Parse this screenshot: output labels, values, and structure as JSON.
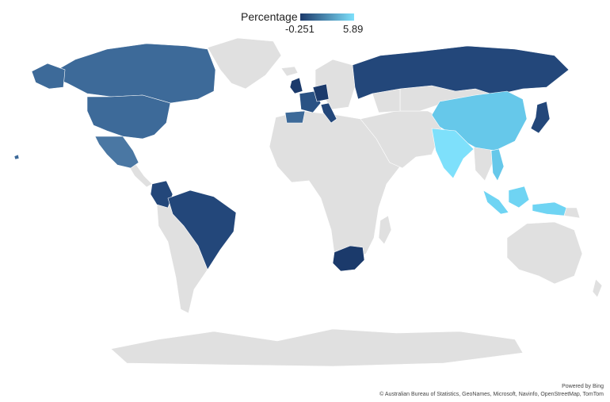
{
  "legend": {
    "title": "Percentage",
    "min_label": "-0.251",
    "max_label": "5.89",
    "min_color": "#1b3a6b",
    "max_color": "#7ee0fb"
  },
  "map": {
    "land_color": "#e0e0e0",
    "border_color": "#ffffff",
    "highlighted_regions": [
      {
        "name": "United States",
        "color": "#3d6a99"
      },
      {
        "name": "Canada",
        "color": "#3d6a99"
      },
      {
        "name": "Mexico",
        "color": "#4a77a3"
      },
      {
        "name": "Colombia",
        "color": "#23477a"
      },
      {
        "name": "Brazil",
        "color": "#23477a"
      },
      {
        "name": "United Kingdom",
        "color": "#1b3a6b"
      },
      {
        "name": "Germany",
        "color": "#1b3a6b"
      },
      {
        "name": "France",
        "color": "#2a5284"
      },
      {
        "name": "Spain",
        "color": "#3d6a99"
      },
      {
        "name": "Italy",
        "color": "#23477a"
      },
      {
        "name": "Russia",
        "color": "#23477a"
      },
      {
        "name": "Japan",
        "color": "#23477a"
      },
      {
        "name": "South Africa",
        "color": "#1b3a6b"
      },
      {
        "name": "China",
        "color": "#66c8ea"
      },
      {
        "name": "India",
        "color": "#7ee0fb"
      },
      {
        "name": "Indonesia",
        "color": "#6fd4f3"
      },
      {
        "name": "Vietnam",
        "color": "#66c8ea"
      }
    ]
  },
  "attribution": {
    "line1": "Powered by Bing",
    "line2": "© Australian Bureau of Statistics, GeoNames, Microsoft, Navinfo, OpenStreetMap, TomTom"
  }
}
